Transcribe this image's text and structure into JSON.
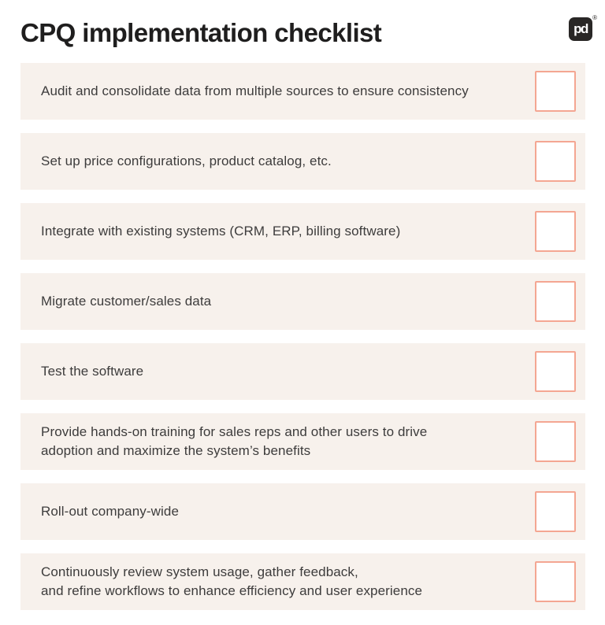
{
  "header": {
    "title": "CPQ implementation checklist",
    "logo": {
      "text": "pd",
      "registered_mark": "®"
    }
  },
  "colors": {
    "row_bg": "#f7f1ec",
    "checkbox_border": "#f4a692",
    "title_text": "#1f1e1e",
    "item_text": "#3d3c3c",
    "logo_bg": "#292726",
    "page_bg": "#ffffff"
  },
  "checklist": {
    "items": [
      {
        "label": "Audit and consolidate data from multiple sources to ensure consistency",
        "checked": false
      },
      {
        "label": "Set up price configurations, product catalog, etc.",
        "checked": false
      },
      {
        "label": "Integrate with existing systems (CRM, ERP, billing software)",
        "checked": false
      },
      {
        "label": "Migrate customer/sales data",
        "checked": false
      },
      {
        "label": "Test the software",
        "checked": false
      },
      {
        "label": "Provide hands-on training for sales reps and other users to drive\nadoption and maximize the system’s benefits",
        "checked": false
      },
      {
        "label": "Roll-out company-wide",
        "checked": false
      },
      {
        "label": "Continuously review system usage, gather feedback,\nand refine workflows to enhance efficiency and user experience",
        "checked": false
      }
    ]
  }
}
